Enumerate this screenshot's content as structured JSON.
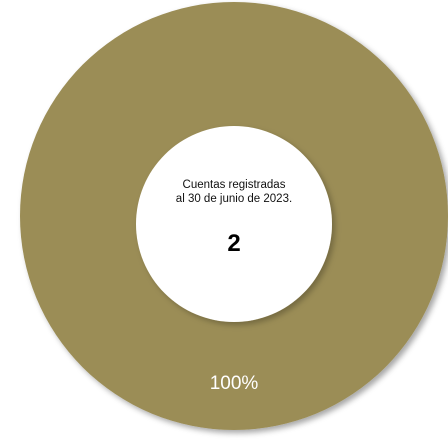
{
  "chart_data": {
    "type": "pie",
    "donut": true,
    "categories": [
      "Cuentas registradas"
    ],
    "values": [
      2
    ],
    "percentages": [
      "100%"
    ],
    "center_text_line1": "Cuentas registradas",
    "center_text_line2": "al 30 de junio de 2023.",
    "center_value": "2",
    "colors": {
      "ring": "#9b8d57",
      "ring_shadow": "#6e6540",
      "hole": "#ffffff"
    }
  }
}
